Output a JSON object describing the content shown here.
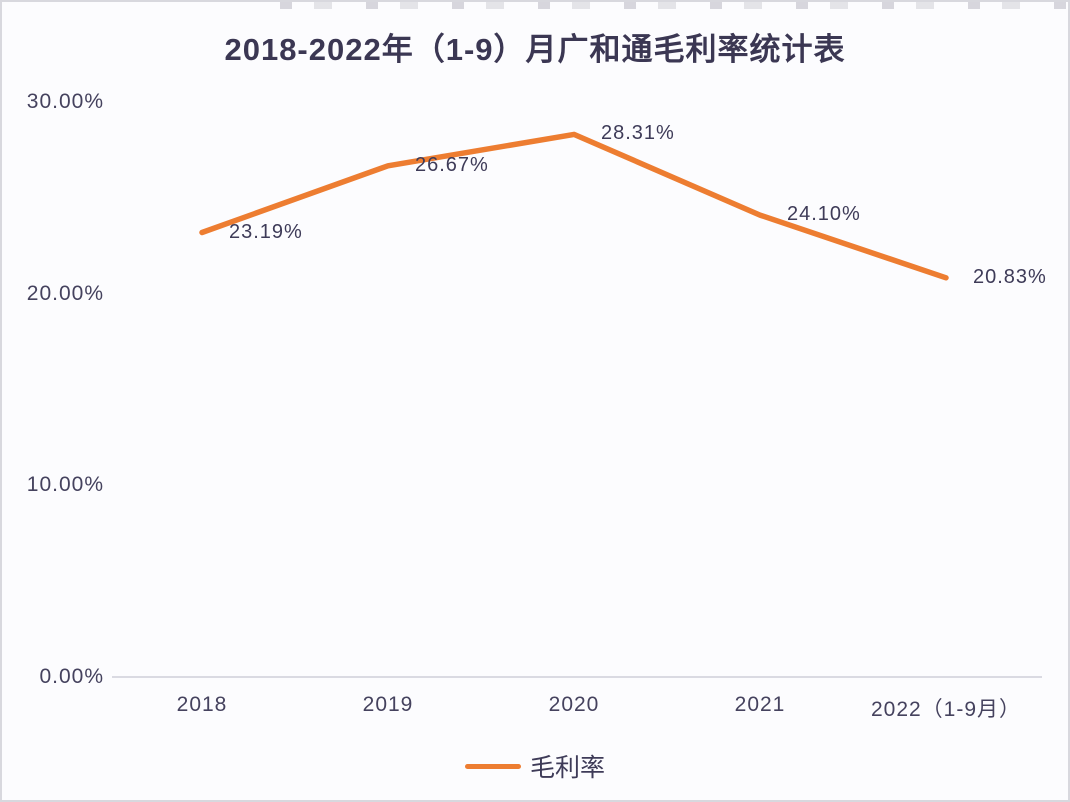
{
  "title": "2018-2022年（1-9）月广和通毛利率统计表",
  "chart_data": {
    "type": "line",
    "title": "2018-2022年（1-9）月广和通毛利率统计表",
    "categories": [
      "2018",
      "2019",
      "2020",
      "2021",
      "2022（1-9月）"
    ],
    "series": [
      {
        "name": "毛利率",
        "values": [
          23.19,
          26.67,
          28.31,
          24.1,
          20.83
        ]
      }
    ],
    "data_labels": [
      "23.19%",
      "26.67%",
      "28.31%",
      "24.10%",
      "20.83%"
    ],
    "y_ticks": [
      "30.00%",
      "20.00%",
      "10.00%",
      "0.00%"
    ],
    "y_tick_values": [
      30,
      20,
      10,
      0
    ],
    "ylim": [
      0,
      30
    ],
    "grid": false,
    "line_color": "#ED7D31",
    "legend": {
      "label": "毛利率",
      "position": "bottom"
    }
  }
}
